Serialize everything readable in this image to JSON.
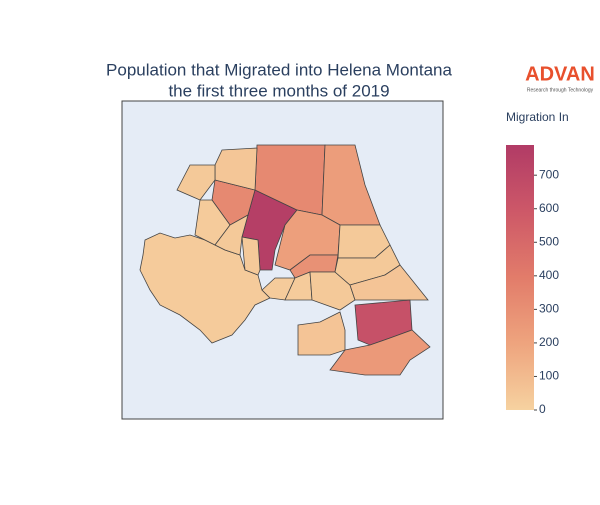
{
  "chart_data": {
    "type": "choropleth",
    "title": [
      "Population that Migrated into Helena Montana",
      "the first three months of 2019"
    ],
    "logo": {
      "name": "ADVAN",
      "tagline": "Research through Technology"
    },
    "colorbar_title": "Migration In",
    "values": [
      30,
      760,
      330,
      230,
      330,
      50,
      40,
      30,
      40,
      220,
      290,
      40,
      30,
      30,
      40,
      40,
      60,
      640,
      250,
      60,
      40
    ],
    "clim": [
      0,
      790
    ],
    "ticks": [
      0,
      100,
      200,
      300,
      400,
      500,
      600,
      700
    ],
    "colorscale": [
      [
        0,
        "#f6d2a0"
      ],
      [
        0.25,
        "#eea47e"
      ],
      [
        0.5,
        "#e27c6a"
      ],
      [
        0.75,
        "#cd5868"
      ],
      [
        1,
        "#b13b66"
      ]
    ],
    "map_background": "#e5ecf6",
    "border_color": "#444444"
  }
}
